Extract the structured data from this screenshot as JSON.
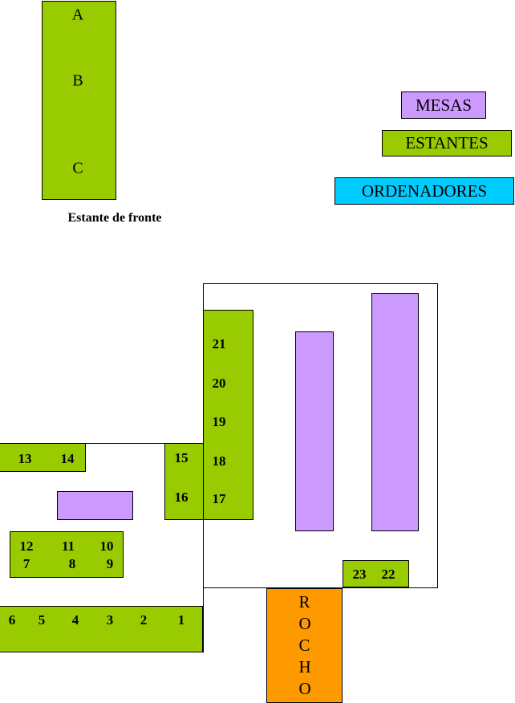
{
  "front_shelf": {
    "letters": [
      "A",
      "B",
      "C"
    ],
    "caption": "Estante de fronte"
  },
  "legend": {
    "tables": "MESAS",
    "shelves": "ESTANTES",
    "computers": "ORDENADORES"
  },
  "shelves": [
    {
      "labels": [
        "13",
        "14"
      ]
    },
    {
      "labels": [
        "15",
        "16"
      ]
    },
    {
      "labels": [
        "21",
        "20",
        "19",
        "18",
        "17"
      ]
    },
    {
      "labels": [
        "12",
        "11",
        "10",
        "7",
        "8",
        "9"
      ]
    },
    {
      "labels": [
        "6",
        "5",
        "4",
        "3",
        "2",
        "1"
      ]
    },
    {
      "labels": [
        "23",
        "22"
      ]
    }
  ],
  "door": "ROCHO"
}
